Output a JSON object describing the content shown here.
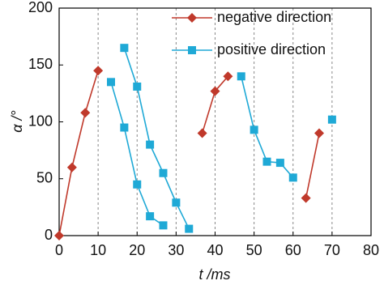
{
  "chart_data": {
    "type": "line",
    "x_label": "t /ms",
    "y_label": "α /°",
    "xlim": [
      0,
      80
    ],
    "xticks": [
      0,
      10,
      20,
      30,
      40,
      50,
      60,
      70,
      80
    ],
    "ylim": [
      0,
      200
    ],
    "yticks": [
      0,
      50,
      100,
      150,
      200
    ],
    "grid": "x-dashed",
    "legend": "upper right",
    "series": [
      {
        "name": "negative direction",
        "color": "#c0392b",
        "marker": "diamond",
        "x": [
          0,
          3.3,
          6.7,
          10,
          20,
          36.7,
          40,
          43.3,
          53,
          63.3,
          66.7
        ],
        "values": [
          0,
          60,
          108,
          145,
          null,
          90,
          127,
          140,
          null,
          33,
          90
        ]
      },
      {
        "name": "positive direction",
        "color": "#1fa9d6",
        "marker": "square",
        "x": [
          13.3,
          16.7,
          20,
          23.3,
          26.7,
          26.7,
          16.7,
          20,
          23.3,
          26.7,
          30,
          33.3,
          40,
          46.7,
          50,
          53.3,
          56.7,
          60,
          65,
          70
        ],
        "values": [
          135,
          95,
          45,
          17,
          9,
          null,
          165,
          131,
          80,
          55,
          29,
          6,
          null,
          140,
          93,
          65,
          64,
          51,
          null,
          102
        ]
      }
    ]
  }
}
